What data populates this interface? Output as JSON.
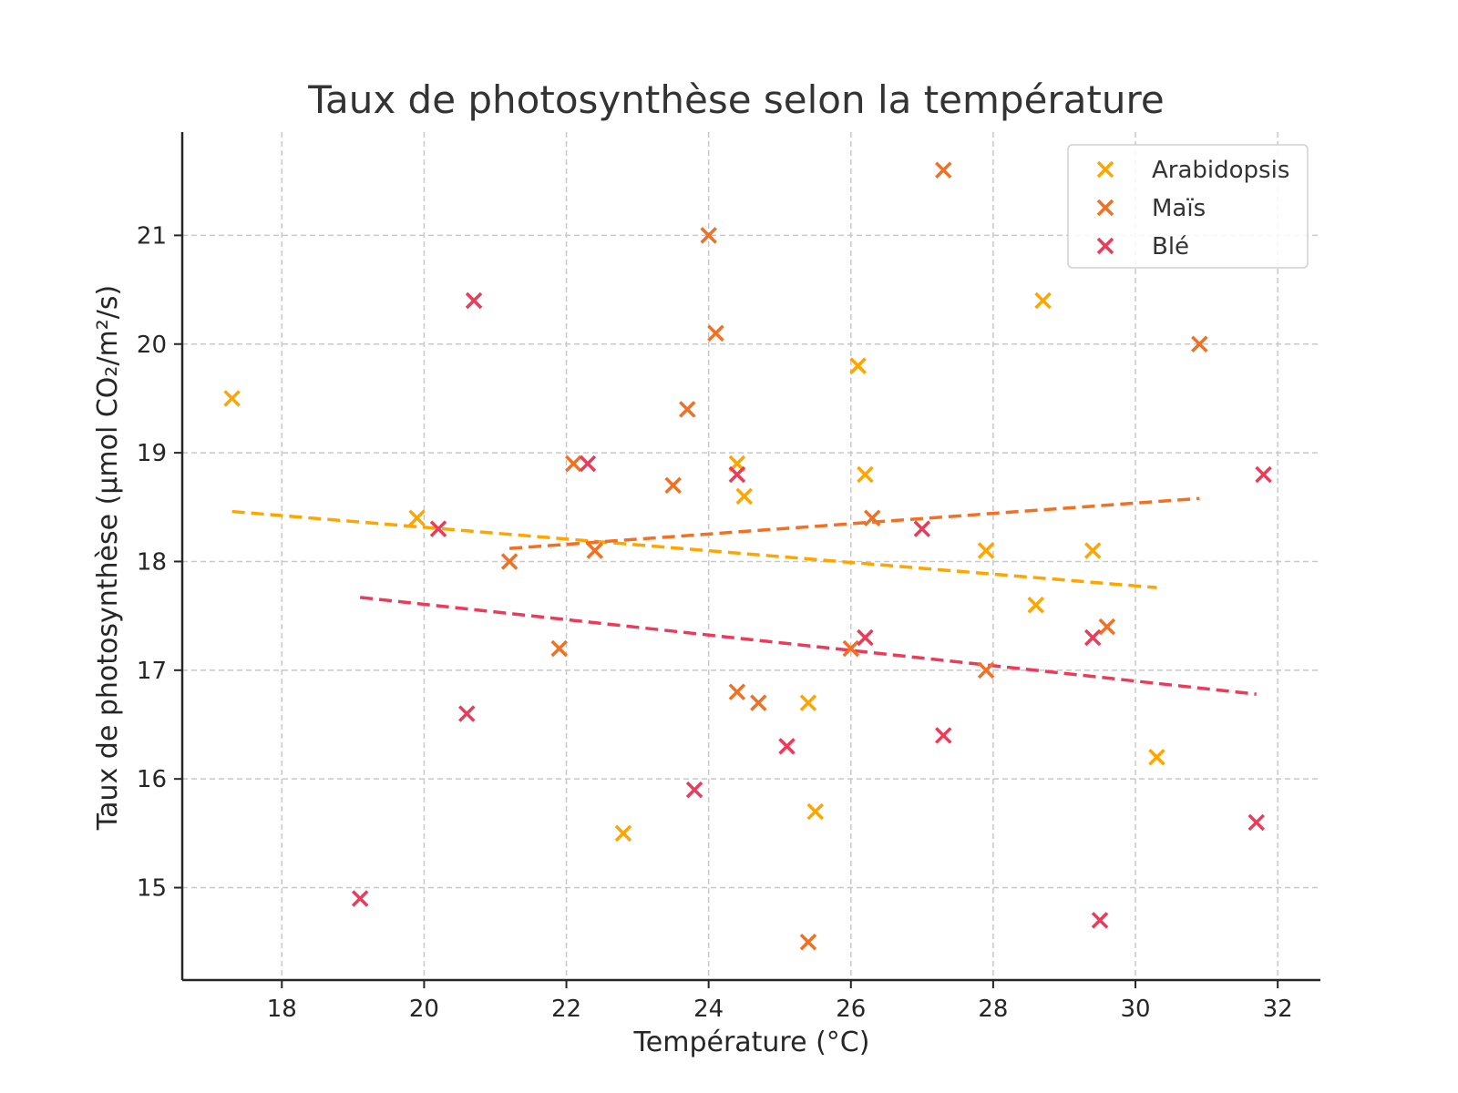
{
  "chart_data": {
    "type": "scatter",
    "title": "Taux de photosynthèse selon la température",
    "xlabel": "Température (°C)",
    "ylabel": "Taux de photosynthèse (µmol CO₂/m²/s)",
    "xlim": [
      16.6,
      32.6
    ],
    "ylim": [
      14.15,
      21.95
    ],
    "xticks": [
      18,
      20,
      22,
      24,
      26,
      28,
      30,
      32
    ],
    "yticks": [
      15,
      16,
      17,
      18,
      19,
      20,
      21
    ],
    "grid": true,
    "legend_position": "top-right",
    "series": [
      {
        "name": "Arabidopsis",
        "color": "#FFA500",
        "marker": "x",
        "points": [
          [
            17.3,
            19.5
          ],
          [
            19.9,
            18.4
          ],
          [
            22.8,
            15.5
          ],
          [
            24.4,
            18.9
          ],
          [
            24.5,
            18.6
          ],
          [
            25.4,
            16.7
          ],
          [
            25.5,
            15.7
          ],
          [
            26.1,
            19.8
          ],
          [
            26.2,
            18.8
          ],
          [
            27.9,
            18.1
          ],
          [
            28.6,
            17.6
          ],
          [
            28.7,
            20.4
          ],
          [
            29.4,
            18.1
          ],
          [
            30.3,
            16.2
          ]
        ],
        "trend": [
          [
            17.3,
            18.46
          ],
          [
            30.3,
            17.76
          ]
        ]
      },
      {
        "name": "Maïs",
        "color": "#F36F21",
        "marker": "x",
        "points": [
          [
            21.2,
            18.0
          ],
          [
            21.9,
            17.2
          ],
          [
            22.1,
            18.9
          ],
          [
            22.4,
            18.1
          ],
          [
            23.5,
            18.7
          ],
          [
            23.7,
            19.4
          ],
          [
            24.0,
            21.0
          ],
          [
            24.1,
            20.1
          ],
          [
            24.4,
            16.8
          ],
          [
            24.7,
            16.7
          ],
          [
            25.4,
            14.5
          ],
          [
            26.0,
            17.2
          ],
          [
            26.3,
            18.4
          ],
          [
            27.3,
            21.6
          ],
          [
            27.9,
            17.0
          ],
          [
            29.6,
            17.4
          ],
          [
            30.9,
            20.0
          ]
        ],
        "trend": [
          [
            21.2,
            18.12
          ],
          [
            30.9,
            18.58
          ]
        ]
      },
      {
        "name": "Blé",
        "color": "#EB3B5A",
        "marker": "x",
        "points": [
          [
            19.1,
            14.9
          ],
          [
            20.2,
            18.3
          ],
          [
            20.6,
            16.6
          ],
          [
            20.7,
            20.4
          ],
          [
            22.3,
            18.9
          ],
          [
            23.8,
            15.9
          ],
          [
            24.4,
            18.8
          ],
          [
            25.1,
            16.3
          ],
          [
            26.2,
            17.3
          ],
          [
            27.0,
            18.3
          ],
          [
            27.3,
            16.4
          ],
          [
            29.4,
            17.3
          ],
          [
            29.5,
            14.7
          ],
          [
            31.7,
            15.6
          ],
          [
            31.8,
            18.8
          ]
        ],
        "trend": [
          [
            19.1,
            17.67
          ],
          [
            31.7,
            16.78
          ]
        ]
      }
    ]
  }
}
